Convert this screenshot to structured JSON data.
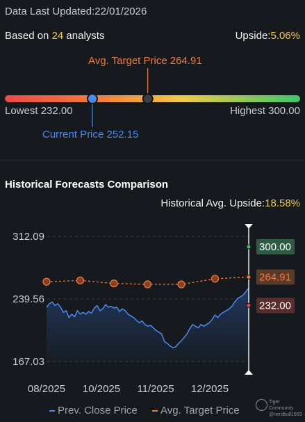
{
  "header": {
    "updated_label": "Data Last Updated:",
    "updated_date": "22/01/2026",
    "based_prefix": "Based on ",
    "analyst_count": "24",
    "based_suffix": " analysts",
    "upside_label": "Upside:",
    "upside_value": "5.06%"
  },
  "range": {
    "avg_target_label": "Avg. Target Price",
    "avg_target": "264.91",
    "lowest_label": "Lowest",
    "lowest": "232.00",
    "highest_label": "Highest",
    "highest": "300.00",
    "current_label": "Current Price",
    "current": "252.15",
    "low_value": 232.0,
    "high_value": 300.0,
    "current_value": 252.15,
    "avg_value": 264.91
  },
  "history": {
    "title": "Historical Forecasts Comparison",
    "avg_upside_label": "Historical Avg. Upside:",
    "avg_upside_value": "18.58%"
  },
  "legend": {
    "close_label": "Prev. Close Price",
    "target_label": "Avg. Target Price"
  },
  "watermark": {
    "line1": "Tiger Community",
    "line2": "@nerdbull1669"
  },
  "colors": {
    "accent_yellow": "#f2c94c",
    "close_line": "#4a8bf0",
    "target_line": "#f07a3c",
    "high_badge": "#2e5c43",
    "avg_badge": "#5a3a2a",
    "low_badge": "#5a2d2d"
  },
  "chart_data": {
    "type": "line",
    "x_ticks": [
      "08/2025",
      "10/2025",
      "11/2025",
      "12/2025"
    ],
    "y_ticks": [
      "312.09",
      "239.56",
      "167.03"
    ],
    "ylim": [
      167.03,
      312.09
    ],
    "grid": true,
    "legend_position": "bottom",
    "badges": [
      {
        "label": "300.00",
        "value": 300.0
      },
      {
        "label": "264.91",
        "value": 264.91
      },
      {
        "label": "232.00",
        "value": 232.0
      }
    ],
    "series": [
      {
        "name": "Prev. Close Price",
        "x": [
          0,
          1,
          2,
          3,
          4,
          5,
          6,
          7,
          8,
          9,
          10,
          11,
          12,
          13,
          14,
          15,
          16,
          17,
          18,
          19,
          20,
          21,
          22,
          23,
          24,
          25,
          26,
          27,
          28,
          29,
          30,
          31,
          32,
          33,
          34,
          35,
          36,
          37,
          38,
          39,
          40,
          41,
          42,
          43,
          44,
          45,
          46,
          47,
          48,
          49,
          50,
          51,
          52,
          53,
          54,
          55,
          56,
          57,
          58,
          59,
          60,
          61,
          62,
          63,
          64,
          65,
          66,
          67,
          68,
          69,
          70,
          71,
          72
        ],
        "values": [
          230,
          234,
          236,
          232,
          234,
          230,
          224,
          226,
          218,
          222,
          219,
          226,
          222,
          224,
          222,
          225,
          223,
          229,
          232,
          226,
          228,
          233,
          230,
          231,
          229,
          230,
          225,
          228,
          226,
          222,
          220,
          218,
          215,
          212,
          214,
          210,
          208,
          209,
          206,
          203,
          201,
          199,
          190,
          188,
          185,
          183,
          184,
          188,
          191,
          195,
          199,
          205,
          210,
          208,
          206,
          210,
          208,
          210,
          212,
          216,
          221,
          218,
          222,
          224,
          226,
          228,
          231,
          236,
          240,
          242,
          244,
          248,
          252.15
        ]
      },
      {
        "name": "Avg. Target Price",
        "x": [
          0,
          12,
          24,
          36,
          48,
          60,
          72
        ],
        "values": [
          259.5,
          261.0,
          257.5,
          256.5,
          256.5,
          263.0,
          264.91
        ]
      }
    ]
  }
}
